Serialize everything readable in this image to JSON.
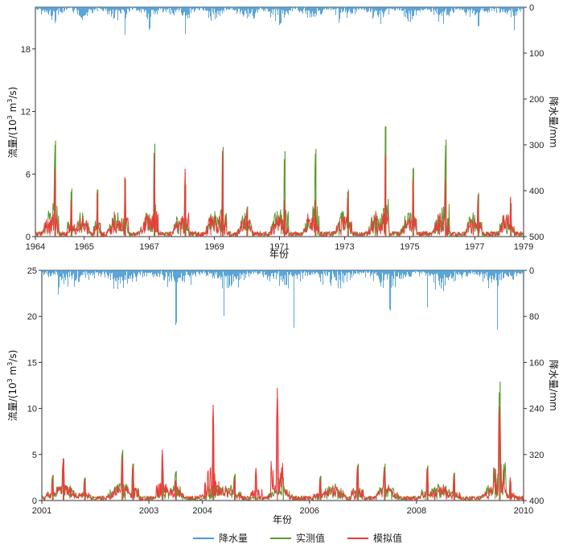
{
  "colors": {
    "precip": "#4a9bd4",
    "observed": "#5a9a2e",
    "simulated": "#ec3b3b"
  },
  "legend": {
    "precip": "降水量",
    "observed": "实测值",
    "simulated": "模拟值"
  },
  "chart_data": [
    {
      "type": "line",
      "xlabel": "年份",
      "ylabel_left_main": "流量/(10",
      "ylabel_left_sup": "3",
      "ylabel_left_mid": " m",
      "ylabel_left_sup2": "3",
      "ylabel_left_end": "/s)",
      "ylabel_right": "降水量/mm",
      "x_range": [
        1964,
        1979
      ],
      "x_ticks": [
        "1964",
        "1965",
        "1967",
        "1969",
        "1971",
        "1973",
        "1975",
        "1977",
        "1979"
      ],
      "x_tick_values": [
        1964,
        1965.5,
        1967.5,
        1969.5,
        1971.5,
        1973.5,
        1975.5,
        1977.5,
        1979
      ],
      "y_left_range": [
        0,
        22
      ],
      "y_left_ticks": [
        "0",
        "6",
        "12",
        "18"
      ],
      "y_left_tick_values": [
        0,
        6,
        12,
        18
      ],
      "y_right_range": [
        0,
        500
      ],
      "y_right_inverted": true,
      "y_right_ticks": [
        "0",
        "100",
        "200",
        "300",
        "400",
        "500"
      ],
      "y_right_tick_values": [
        0,
        100,
        200,
        300,
        400,
        500
      ],
      "observed_peaks": [
        [
          1964.6,
          9.2
        ],
        [
          1965.1,
          4.6
        ],
        [
          1965.9,
          4.5
        ],
        [
          1966.75,
          5.5
        ],
        [
          1967.65,
          8.9
        ],
        [
          1968.6,
          5.0
        ],
        [
          1969.75,
          8.6
        ],
        [
          1970.5,
          2.9
        ],
        [
          1971.65,
          8.2
        ],
        [
          1972.6,
          8.4
        ],
        [
          1973.6,
          4.5
        ],
        [
          1974.75,
          10.6
        ],
        [
          1975.6,
          6.6
        ],
        [
          1976.6,
          9.3
        ],
        [
          1977.6,
          4.2
        ],
        [
          1978.6,
          3.2
        ]
      ],
      "simulated_peaks": [
        [
          1964.6,
          6.5
        ],
        [
          1965.1,
          3.5
        ],
        [
          1965.9,
          4.2
        ],
        [
          1966.75,
          5.7
        ],
        [
          1967.65,
          7.8
        ],
        [
          1968.6,
          6.5
        ],
        [
          1969.75,
          8.2
        ],
        [
          1970.5,
          2.6
        ],
        [
          1971.65,
          3.5
        ],
        [
          1972.6,
          3.5
        ],
        [
          1973.6,
          4.3
        ],
        [
          1974.75,
          7.8
        ],
        [
          1975.6,
          5.5
        ],
        [
          1976.6,
          5.5
        ],
        [
          1977.6,
          4.0
        ],
        [
          1978.6,
          3.8
        ]
      ],
      "precip_peaks": [
        [
          1966.75,
          60
        ],
        [
          1964.5,
          25
        ],
        [
          1967.5,
          45
        ],
        [
          1968.6,
          55
        ],
        [
          1971.5,
          35
        ],
        [
          1974.6,
          35
        ],
        [
          1977.6,
          40
        ],
        [
          1978.7,
          50
        ]
      ]
    },
    {
      "type": "line",
      "xlabel": "年份",
      "ylabel_left_main": "流量/(10",
      "ylabel_left_sup": "3",
      "ylabel_left_mid": " m",
      "ylabel_left_sup2": "3",
      "ylabel_left_end": "/s)",
      "ylabel_right": "降水量/mm",
      "x_range": [
        2001,
        2010
      ],
      "x_ticks": [
        "2001",
        "2003",
        "2004",
        "2006",
        "2008",
        "2010"
      ],
      "x_tick_values": [
        2001,
        2003,
        2004,
        2006,
        2008,
        2010
      ],
      "y_left_range": [
        0,
        25
      ],
      "y_left_ticks": [
        "0",
        "5",
        "10",
        "15",
        "20",
        "25"
      ],
      "y_left_tick_values": [
        0,
        5,
        10,
        15,
        20,
        25
      ],
      "y_right_range": [
        0,
        400
      ],
      "y_right_inverted": true,
      "y_right_ticks": [
        "0",
        "80",
        "160",
        "240",
        "320",
        "400"
      ],
      "y_right_tick_values": [
        0,
        80,
        160,
        240,
        320,
        400
      ],
      "observed_peaks": [
        [
          2001.2,
          2.8
        ],
        [
          2001.4,
          4.5
        ],
        [
          2001.8,
          2.5
        ],
        [
          2002.5,
          5.5
        ],
        [
          2002.7,
          4.0
        ],
        [
          2003.25,
          3.6
        ],
        [
          2003.5,
          3.2
        ],
        [
          2004.2,
          4.8
        ],
        [
          2004.6,
          2.9
        ],
        [
          2005.5,
          2.5
        ],
        [
          2006.2,
          2.7
        ],
        [
          2006.9,
          4.0
        ],
        [
          2007.4,
          4.0
        ],
        [
          2008.2,
          3.8
        ],
        [
          2008.7,
          3.0
        ],
        [
          2009.55,
          12.9
        ],
        [
          2009.75,
          2.0
        ]
      ],
      "simulated_peaks": [
        [
          2001.2,
          2.5
        ],
        [
          2001.4,
          4.6
        ],
        [
          2001.8,
          2.4
        ],
        [
          2002.5,
          4.8
        ],
        [
          2002.7,
          3.8
        ],
        [
          2003.25,
          5.5
        ],
        [
          2003.5,
          2.2
        ],
        [
          2004.05,
          2.0
        ],
        [
          2004.2,
          10.4
        ],
        [
          2004.6,
          2.5
        ],
        [
          2005.0,
          3.5
        ],
        [
          2005.4,
          12.2
        ],
        [
          2006.2,
          2.5
        ],
        [
          2006.9,
          3.7
        ],
        [
          2007.4,
          3.5
        ],
        [
          2008.2,
          3.5
        ],
        [
          2008.7,
          2.7
        ],
        [
          2009.55,
          10.2
        ],
        [
          2009.75,
          2.5
        ]
      ],
      "precip_peaks": [
        [
          2003.5,
          90
        ],
        [
          2004.4,
          75
        ],
        [
          2005.7,
          95
        ],
        [
          2009.5,
          100
        ],
        [
          2001.3,
          40
        ],
        [
          2007.5,
          65
        ],
        [
          2008.2,
          60
        ]
      ]
    }
  ]
}
